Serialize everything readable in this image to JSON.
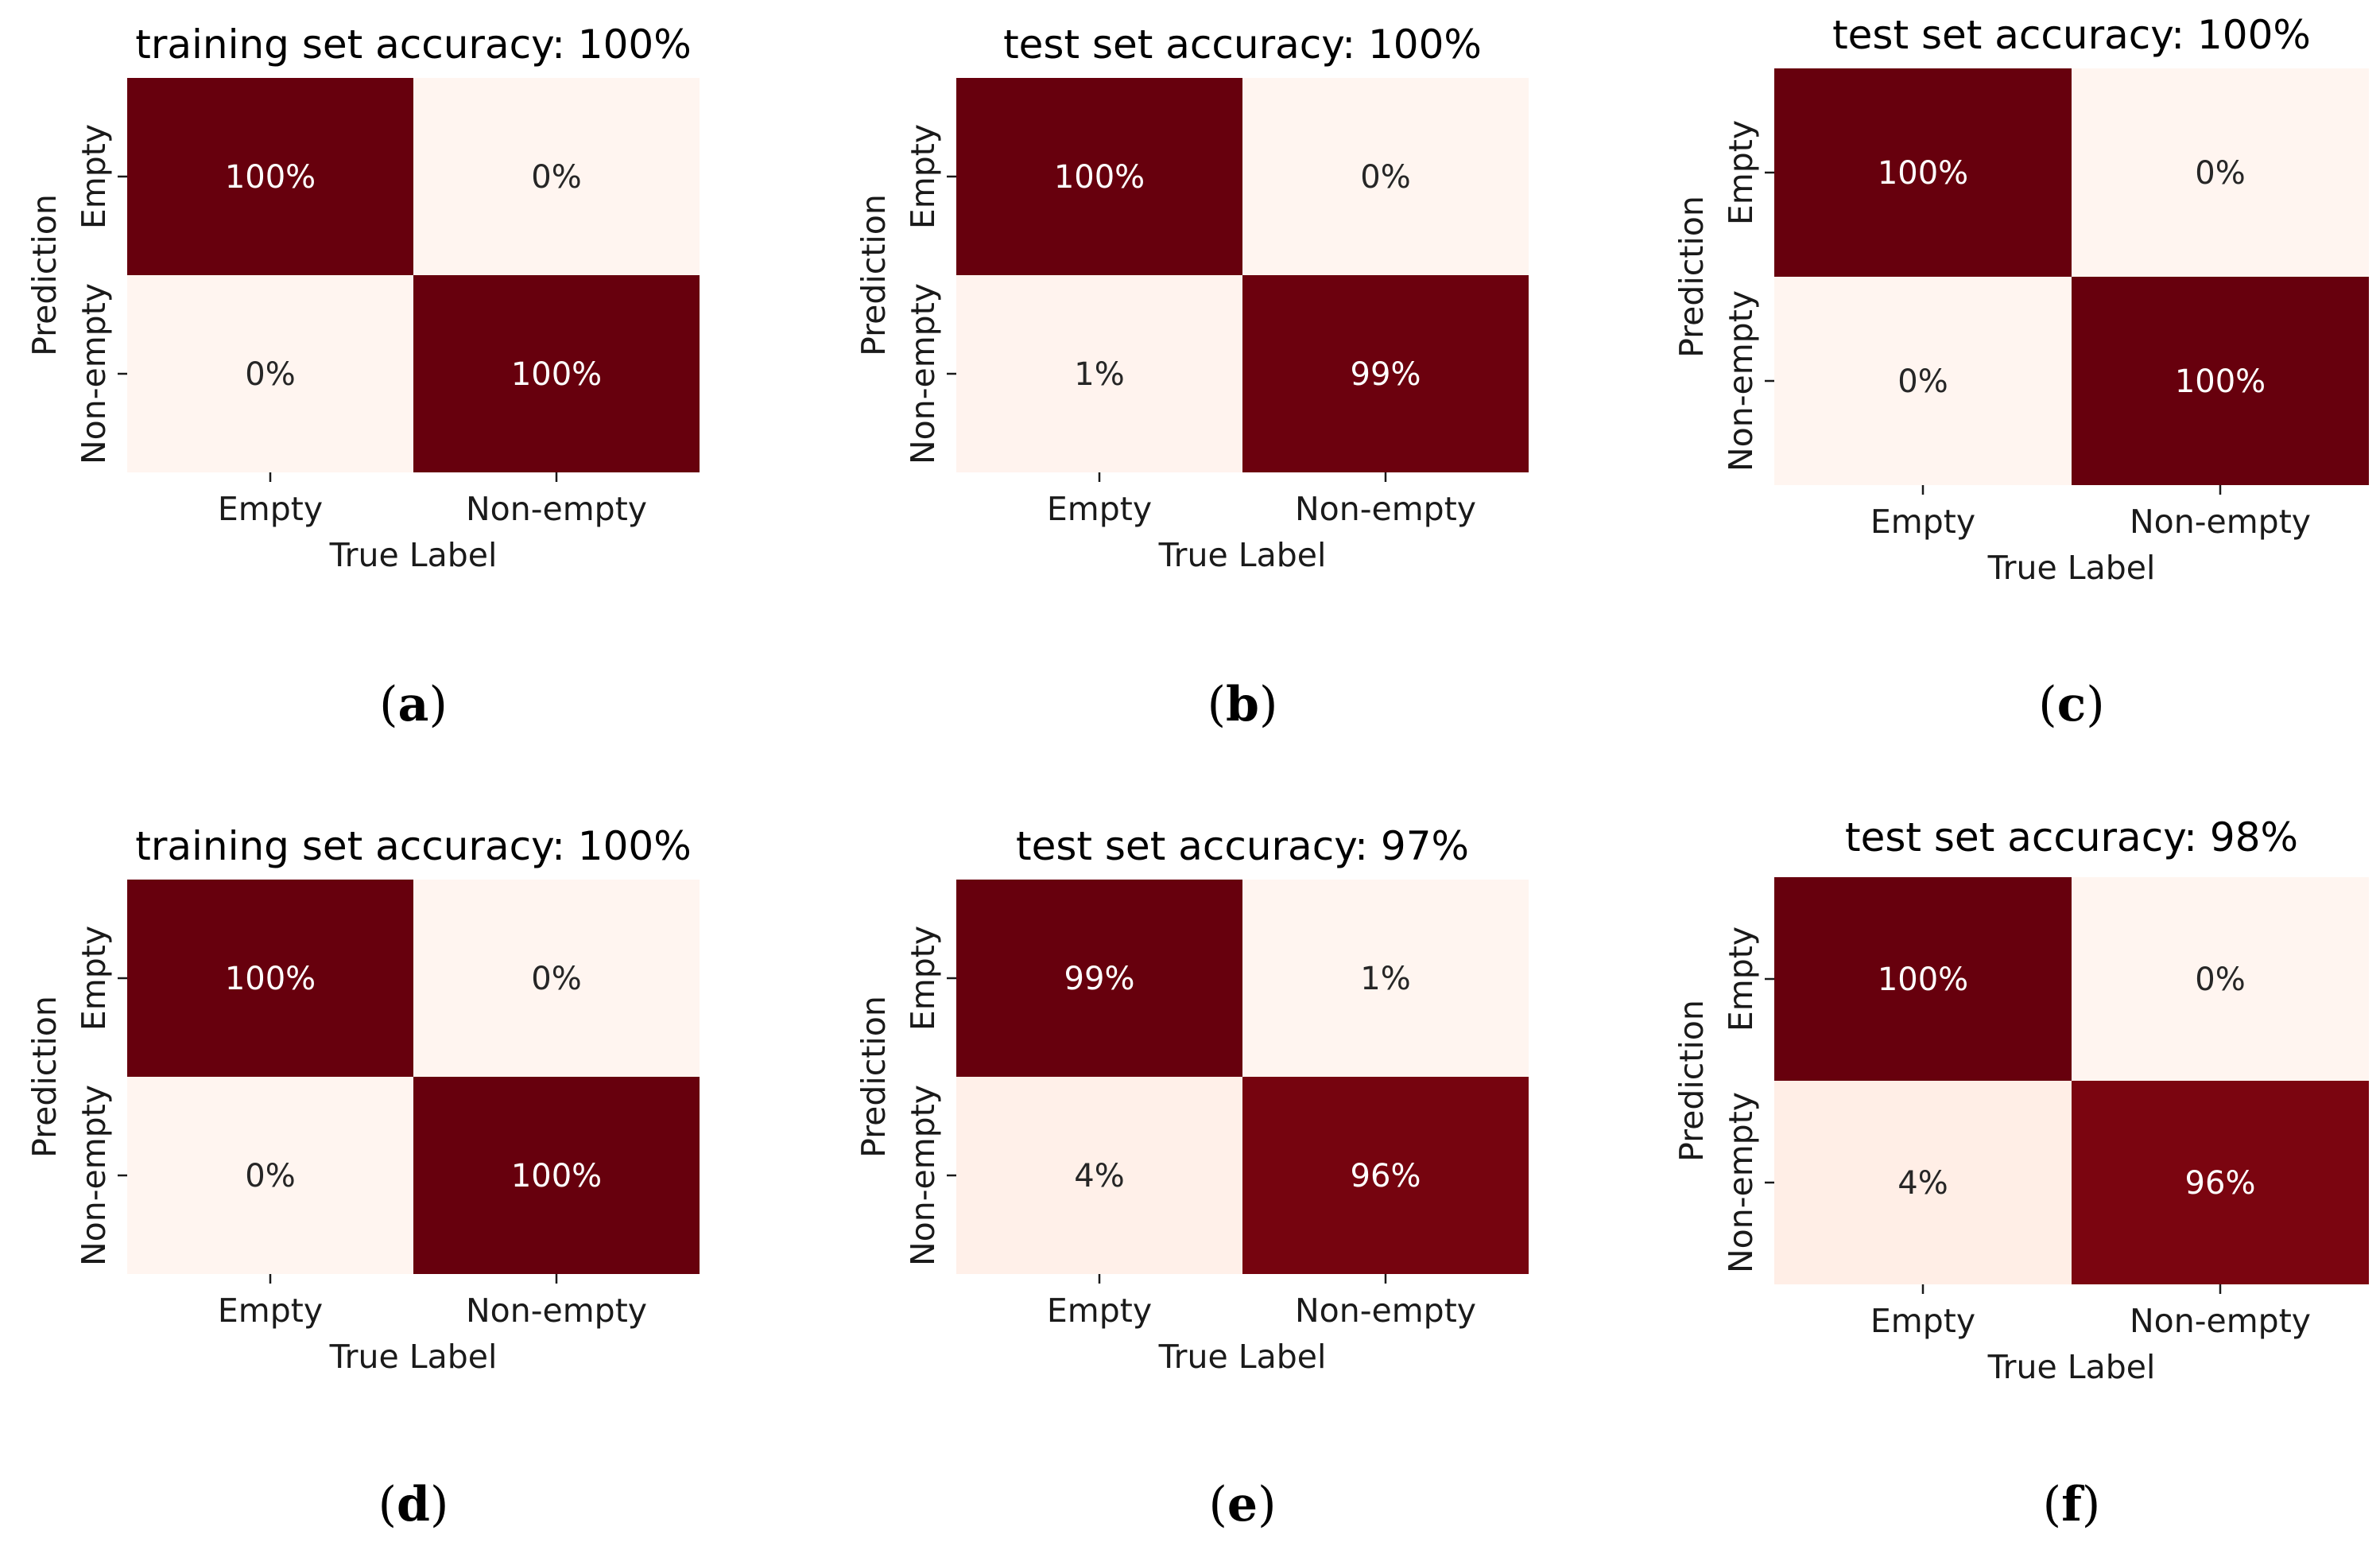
{
  "chart_data": [
    {
      "type": "heatmap",
      "panel": "a",
      "title": "training set accuracy: 100%",
      "xlabel": "True Label",
      "ylabel": "Prediction",
      "x_categories": [
        "Empty",
        "Non-empty"
      ],
      "y_categories": [
        "Empty",
        "Non-empty"
      ],
      "values": [
        [
          100,
          0
        ],
        [
          0,
          100
        ]
      ],
      "value_format": "percent",
      "colormap": "Reds",
      "colorbar": false
    },
    {
      "type": "heatmap",
      "panel": "b",
      "title": "test set accuracy: 100%",
      "xlabel": "True Label",
      "ylabel": "Prediction",
      "x_categories": [
        "Empty",
        "Non-empty"
      ],
      "y_categories": [
        "Empty",
        "Non-empty"
      ],
      "values": [
        [
          100,
          0
        ],
        [
          1,
          99
        ]
      ],
      "value_format": "percent",
      "colormap": "Reds",
      "colorbar": false
    },
    {
      "type": "heatmap",
      "panel": "c",
      "title": "test set accuracy: 100%",
      "xlabel": "True Label",
      "ylabel": "Prediction",
      "x_categories": [
        "Empty",
        "Non-empty"
      ],
      "y_categories": [
        "Empty",
        "Non-empty"
      ],
      "values": [
        [
          100,
          0
        ],
        [
          0,
          100
        ]
      ],
      "value_format": "percent",
      "colormap": "Reds",
      "colorbar": false
    },
    {
      "type": "heatmap",
      "panel": "d",
      "title": "training set accuracy: 100%",
      "xlabel": "True Label",
      "ylabel": "Prediction",
      "x_categories": [
        "Empty",
        "Non-empty"
      ],
      "y_categories": [
        "Empty",
        "Non-empty"
      ],
      "values": [
        [
          100,
          0
        ],
        [
          0,
          100
        ]
      ],
      "value_format": "percent",
      "colormap": "Reds",
      "colorbar": false
    },
    {
      "type": "heatmap",
      "panel": "e",
      "title": "test set accuracy: 97%",
      "xlabel": "True Label",
      "ylabel": "Prediction",
      "x_categories": [
        "Empty",
        "Non-empty"
      ],
      "y_categories": [
        "Empty",
        "Non-empty"
      ],
      "values": [
        [
          99,
          1
        ],
        [
          4,
          96
        ]
      ],
      "value_format": "percent",
      "colormap": "Reds",
      "colorbar": false
    },
    {
      "type": "heatmap",
      "panel": "f",
      "title": "test set accuracy: 98%",
      "xlabel": "True Label",
      "ylabel": "Prediction",
      "x_categories": [
        "Empty",
        "Non-empty"
      ],
      "y_categories": [
        "Empty",
        "Non-empty"
      ],
      "values": [
        [
          100,
          0
        ],
        [
          4,
          96
        ]
      ],
      "value_format": "percent",
      "colormap": "Reds",
      "colorbar": false
    }
  ],
  "panel_labels": [
    "a",
    "b",
    "c",
    "d",
    "e",
    "f"
  ],
  "colors": {
    "low": "#fff5f0",
    "mid": "#fdd5c3",
    "high": "#67000d",
    "dark_text": "#262626",
    "light_text": "#ffffff"
  }
}
